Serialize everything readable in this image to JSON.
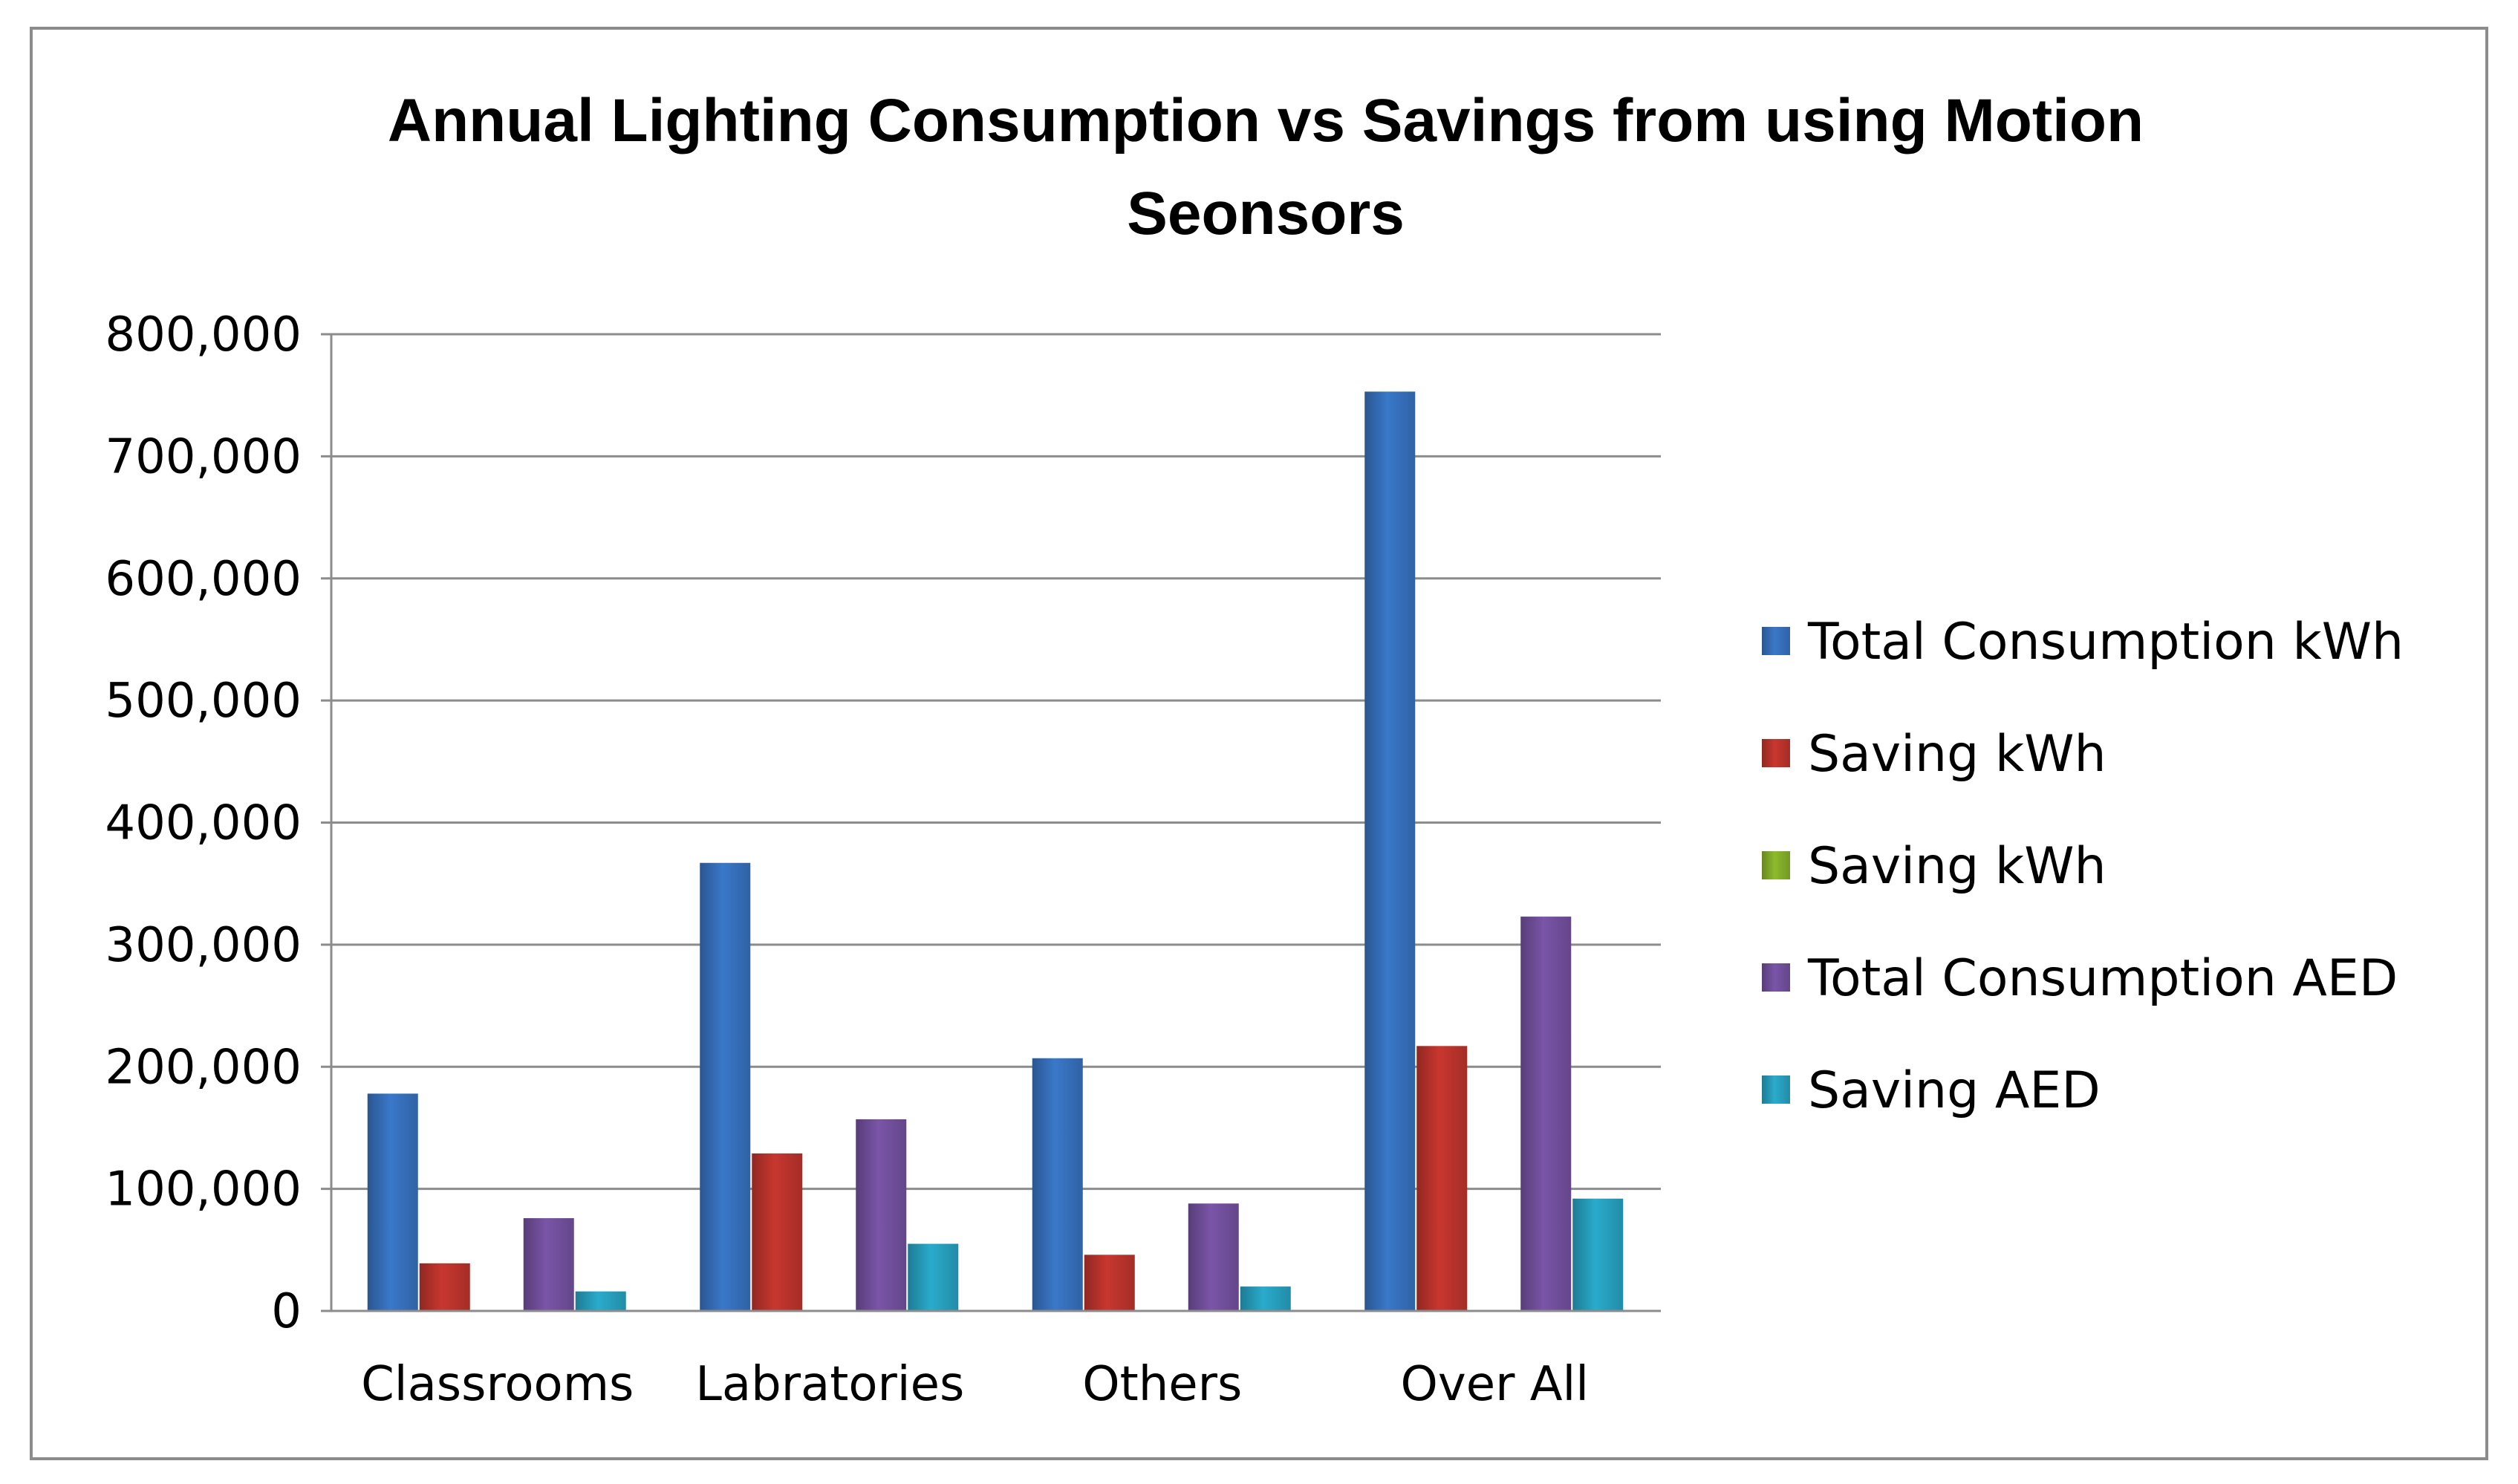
{
  "chart_data": {
    "type": "bar",
    "title_lines": [
      "Annual Lighting Consumption vs Savings from using Motion",
      "Seonsors"
    ],
    "categories": [
      "Classrooms",
      "Labratories",
      "Others",
      "Over All"
    ],
    "series": [
      {
        "name": "Total Consumption  kWh",
        "color": "#3a78c9",
        "values": [
          178000,
          367000,
          207000,
          753000
        ]
      },
      {
        "name": "Saving  kWh",
        "color": "#c8372f",
        "values": [
          39000,
          129000,
          46000,
          217000
        ]
      },
      {
        "name": "Saving  kWh",
        "color": "#8dbb2c",
        "values": [
          0,
          0,
          0,
          0
        ]
      },
      {
        "name": "Total Consumption  AED",
        "color": "#7a55a8",
        "values": [
          76000,
          157000,
          88000,
          323000
        ]
      },
      {
        "name": "Saving  AED",
        "color": "#2aabcc",
        "values": [
          16000,
          55000,
          20000,
          92000
        ]
      }
    ],
    "ylim": [
      0,
      800000
    ],
    "yticks": [
      0,
      100000,
      200000,
      300000,
      400000,
      500000,
      600000,
      700000,
      800000
    ],
    "ytick_labels": [
      "0",
      "100,000",
      "200,000",
      "300,000",
      "400,000",
      "500,000",
      "600,000",
      "700,000",
      "800,000"
    ],
    "grid": true,
    "legend_position": "right",
    "xlabel": "",
    "ylabel": ""
  }
}
